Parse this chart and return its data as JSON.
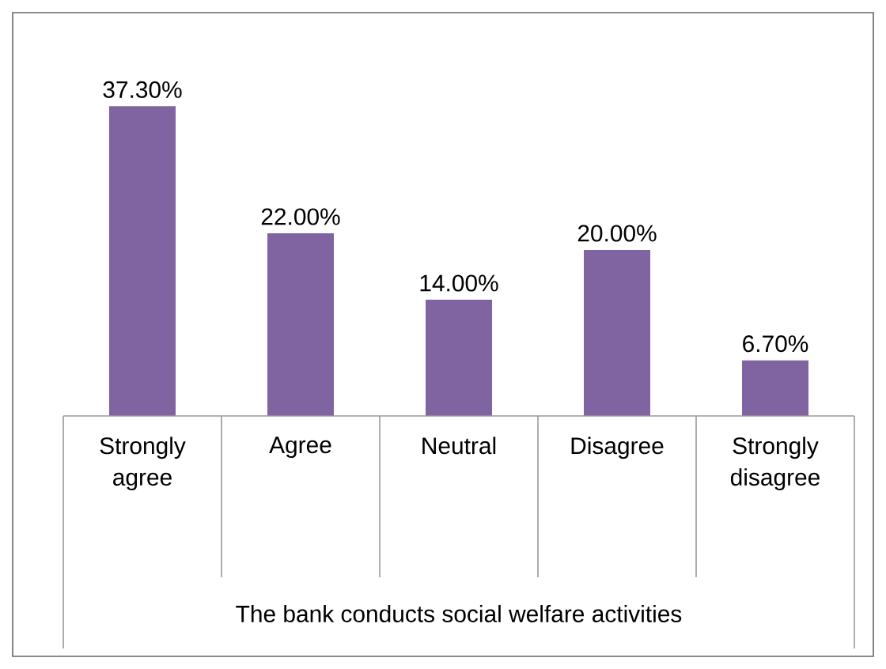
{
  "chart_data": {
    "type": "bar",
    "xlabel": "The bank conducts social welfare activities",
    "categories": [
      "Strongly agree",
      "Agree",
      "Neutral",
      "Disagree",
      "Strongly disagree"
    ],
    "values": [
      37.3,
      22.0,
      14.0,
      20.0,
      6.7
    ],
    "value_labels": [
      "37.30%",
      "22.00%",
      "14.00%",
      "20.00%",
      "6.70%"
    ],
    "color": "#8064a2"
  }
}
